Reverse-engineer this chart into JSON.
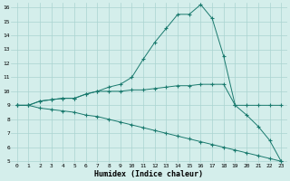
{
  "xlabel": "Humidex (Indice chaleur)",
  "x": [
    0,
    1,
    2,
    3,
    4,
    5,
    6,
    7,
    8,
    9,
    10,
    11,
    12,
    13,
    14,
    15,
    16,
    17,
    18,
    19,
    20,
    21,
    22,
    23
  ],
  "line1": [
    9,
    9,
    9.3,
    9.4,
    9.5,
    9.5,
    9.8,
    10.0,
    10.0,
    10.0,
    10.1,
    10.1,
    10.2,
    10.3,
    10.4,
    10.4,
    10.5,
    10.5,
    10.5,
    9.0,
    9.0,
    9.0,
    9.0,
    9.0
  ],
  "line2": [
    9,
    9,
    9.3,
    9.4,
    9.5,
    9.5,
    9.8,
    10.0,
    10.3,
    10.5,
    11.0,
    12.3,
    13.5,
    14.5,
    15.5,
    15.5,
    16.2,
    15.2,
    12.5,
    9.0,
    8.3,
    7.5,
    6.5,
    5.0
  ],
  "line3": [
    9,
    9,
    8.8,
    8.7,
    8.6,
    8.5,
    8.3,
    8.2,
    8.0,
    7.8,
    7.6,
    7.4,
    7.2,
    7.0,
    6.8,
    6.6,
    6.4,
    6.2,
    6.0,
    5.8,
    5.6,
    5.4,
    5.2,
    5.0
  ],
  "xlim": [
    -0.5,
    23.5
  ],
  "ylim": [
    5,
    16
  ],
  "yticks": [
    5,
    6,
    7,
    8,
    9,
    10,
    11,
    12,
    13,
    14,
    15,
    16
  ],
  "xticks": [
    0,
    1,
    2,
    3,
    4,
    5,
    6,
    7,
    8,
    9,
    10,
    11,
    12,
    13,
    14,
    15,
    16,
    17,
    18,
    19,
    20,
    21,
    22,
    23
  ],
  "line_color": "#1a7a6e",
  "bg_color": "#d4eeeb",
  "grid_color": "#aad4d0",
  "marker": "+"
}
